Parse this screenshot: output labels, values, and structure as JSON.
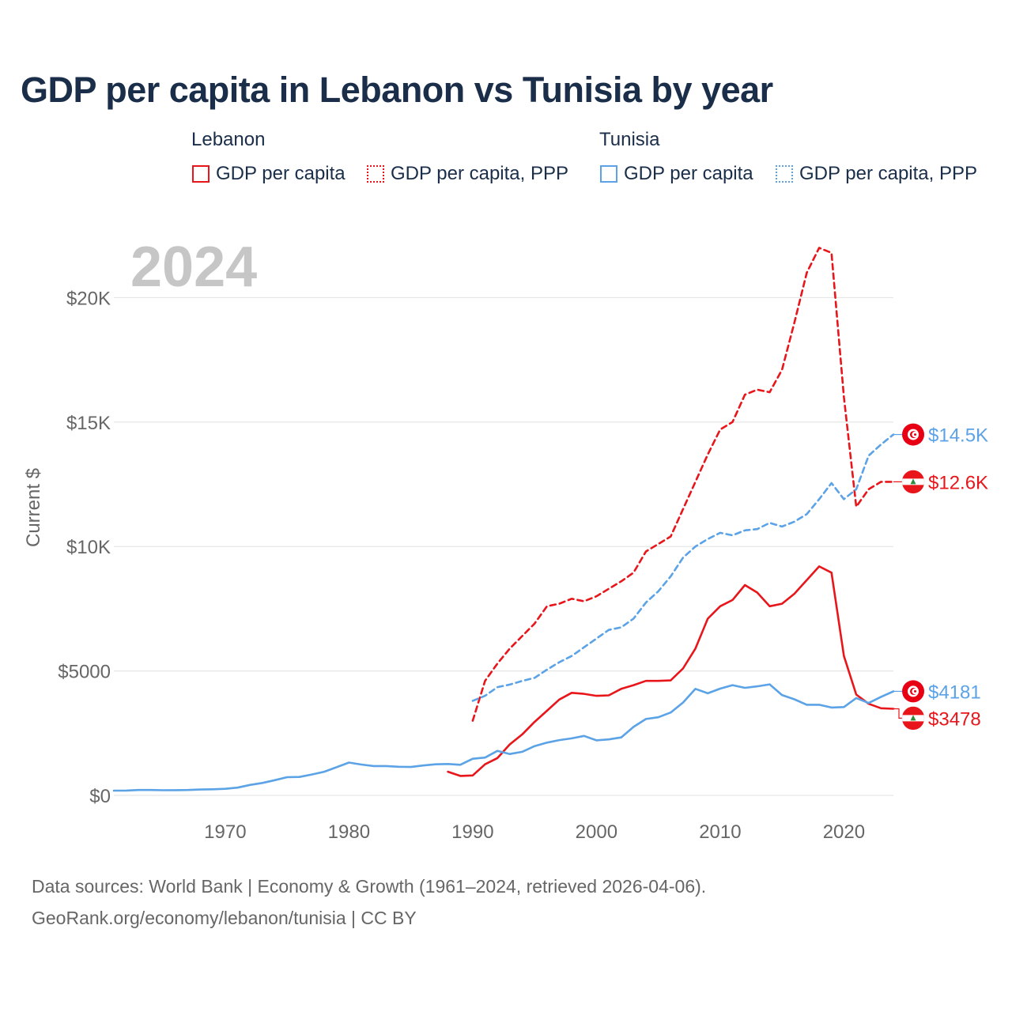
{
  "title": "GDP per capita in Lebanon vs Tunisia by year",
  "legend": {
    "groups": [
      {
        "name": "Lebanon",
        "items": [
          {
            "label": "GDP per capita",
            "style": "solid",
            "color": "#e8161b"
          },
          {
            "label": "GDP per capita, PPP",
            "style": "dotted",
            "color": "#e8161b"
          }
        ]
      },
      {
        "name": "Tunisia",
        "items": [
          {
            "label": "GDP per capita",
            "style": "solid",
            "color": "#5ba3e6"
          },
          {
            "label": "GDP per capita, PPP",
            "style": "dotted",
            "color": "#5ba3e6"
          }
        ]
      }
    ]
  },
  "footer": {
    "line1": "Data sources: World Bank | Economy & Growth (1961–2024, retrieved 2026-04-06).",
    "line2": "GeoRank.org/economy/lebanon/tunisia | CC BY"
  },
  "chart_data": {
    "type": "line",
    "year_watermark": "2024",
    "ylabel": "Current $",
    "xlim": [
      1961,
      2024
    ],
    "ylim": [
      0,
      22000
    ],
    "x_ticks": [
      1970,
      1980,
      1990,
      2000,
      2010,
      2020
    ],
    "x_tick_labels": [
      "1970",
      "1980",
      "1990",
      "2000",
      "2010",
      "2020"
    ],
    "y_ticks": [
      0,
      5000,
      10000,
      15000,
      20000
    ],
    "y_tick_labels": [
      "$0",
      "$5000",
      "$10K",
      "$15K",
      "$20K"
    ],
    "series": [
      {
        "name": "Lebanon GDP per capita",
        "country": "Lebanon",
        "color": "#e8161b",
        "dashed": false,
        "end_label": "$3478",
        "x": [
          1988,
          1989,
          1990,
          1991,
          1992,
          1993,
          1994,
          1995,
          1996,
          1997,
          1998,
          1999,
          2000,
          2001,
          2002,
          2003,
          2004,
          2005,
          2006,
          2007,
          2008,
          2009,
          2010,
          2011,
          2012,
          2013,
          2014,
          2015,
          2016,
          2017,
          2018,
          2019,
          2020,
          2021,
          2022,
          2023,
          2024
        ],
        "y": [
          950,
          780,
          800,
          1250,
          1500,
          2050,
          2450,
          2950,
          3400,
          3850,
          4120,
          4080,
          4000,
          4020,
          4280,
          4430,
          4600,
          4600,
          4620,
          5100,
          5900,
          7100,
          7600,
          7850,
          8450,
          8150,
          7600,
          7700,
          8100,
          8650,
          9200,
          8950,
          5600,
          4050,
          3680,
          3500,
          3478
        ]
      },
      {
        "name": "Lebanon GDP per capita, PPP",
        "country": "Lebanon",
        "color": "#e8161b",
        "dashed": true,
        "end_label": "$12.6K",
        "x": [
          1990,
          1991,
          1992,
          1993,
          1994,
          1995,
          1996,
          1997,
          1998,
          1999,
          2000,
          2001,
          2002,
          2003,
          2004,
          2005,
          2006,
          2007,
          2008,
          2009,
          2010,
          2011,
          2012,
          2013,
          2014,
          2015,
          2016,
          2017,
          2018,
          2019,
          2020,
          2021,
          2022,
          2023,
          2024
        ],
        "y": [
          3000,
          4600,
          5300,
          5900,
          6400,
          6900,
          7600,
          7700,
          7900,
          7800,
          8000,
          8300,
          8600,
          8950,
          9800,
          10100,
          10400,
          11500,
          12600,
          13700,
          14700,
          15000,
          16100,
          16300,
          16200,
          17100,
          19000,
          21000,
          22000,
          21800,
          16000,
          11600,
          12300,
          12600,
          12600
        ]
      },
      {
        "name": "Tunisia GDP per capita",
        "country": "Tunisia",
        "color": "#5ba3e6",
        "dashed": false,
        "end_label": "$4181",
        "x": [
          1961,
          1962,
          1963,
          1964,
          1965,
          1966,
          1967,
          1968,
          1969,
          1970,
          1971,
          1972,
          1973,
          1974,
          1975,
          1976,
          1977,
          1978,
          1979,
          1980,
          1981,
          1982,
          1983,
          1984,
          1985,
          1986,
          1987,
          1988,
          1989,
          1990,
          1991,
          1992,
          1993,
          1994,
          1995,
          1996,
          1997,
          1998,
          1999,
          2000,
          2001,
          2002,
          2003,
          2004,
          2005,
          2006,
          2007,
          2008,
          2009,
          2010,
          2011,
          2012,
          2013,
          2014,
          2015,
          2016,
          2017,
          2018,
          2019,
          2020,
          2021,
          2022,
          2023,
          2024
        ],
        "y": [
          190,
          195,
          215,
          215,
          205,
          210,
          215,
          235,
          245,
          265,
          310,
          420,
          500,
          610,
          730,
          740,
          840,
          950,
          1130,
          1320,
          1240,
          1180,
          1180,
          1150,
          1140,
          1200,
          1250,
          1260,
          1230,
          1470,
          1520,
          1790,
          1660,
          1750,
          1980,
          2120,
          2220,
          2290,
          2390,
          2210,
          2250,
          2330,
          2750,
          3070,
          3140,
          3330,
          3730,
          4280,
          4100,
          4290,
          4430,
          4320,
          4380,
          4460,
          4030,
          3860,
          3640,
          3640,
          3530,
          3550,
          3910,
          3710,
          3960,
          4181
        ]
      },
      {
        "name": "Tunisia GDP per capita, PPP",
        "country": "Tunisia",
        "color": "#5ba3e6",
        "dashed": true,
        "end_label": "$14.5K",
        "x": [
          1990,
          1991,
          1992,
          1993,
          1994,
          1995,
          1996,
          1997,
          1998,
          1999,
          2000,
          2001,
          2002,
          2003,
          2004,
          2005,
          2006,
          2007,
          2008,
          2009,
          2010,
          2011,
          2012,
          2013,
          2014,
          2015,
          2016,
          2017,
          2018,
          2019,
          2020,
          2021,
          2022,
          2023,
          2024
        ],
        "y": [
          3800,
          4000,
          4350,
          4450,
          4600,
          4720,
          5050,
          5350,
          5600,
          5950,
          6300,
          6650,
          6750,
          7100,
          7750,
          8200,
          8800,
          9550,
          10000,
          10300,
          10550,
          10450,
          10650,
          10700,
          10950,
          10800,
          11000,
          11300,
          11900,
          12550,
          11900,
          12300,
          13650,
          14100,
          14500
        ]
      }
    ]
  }
}
